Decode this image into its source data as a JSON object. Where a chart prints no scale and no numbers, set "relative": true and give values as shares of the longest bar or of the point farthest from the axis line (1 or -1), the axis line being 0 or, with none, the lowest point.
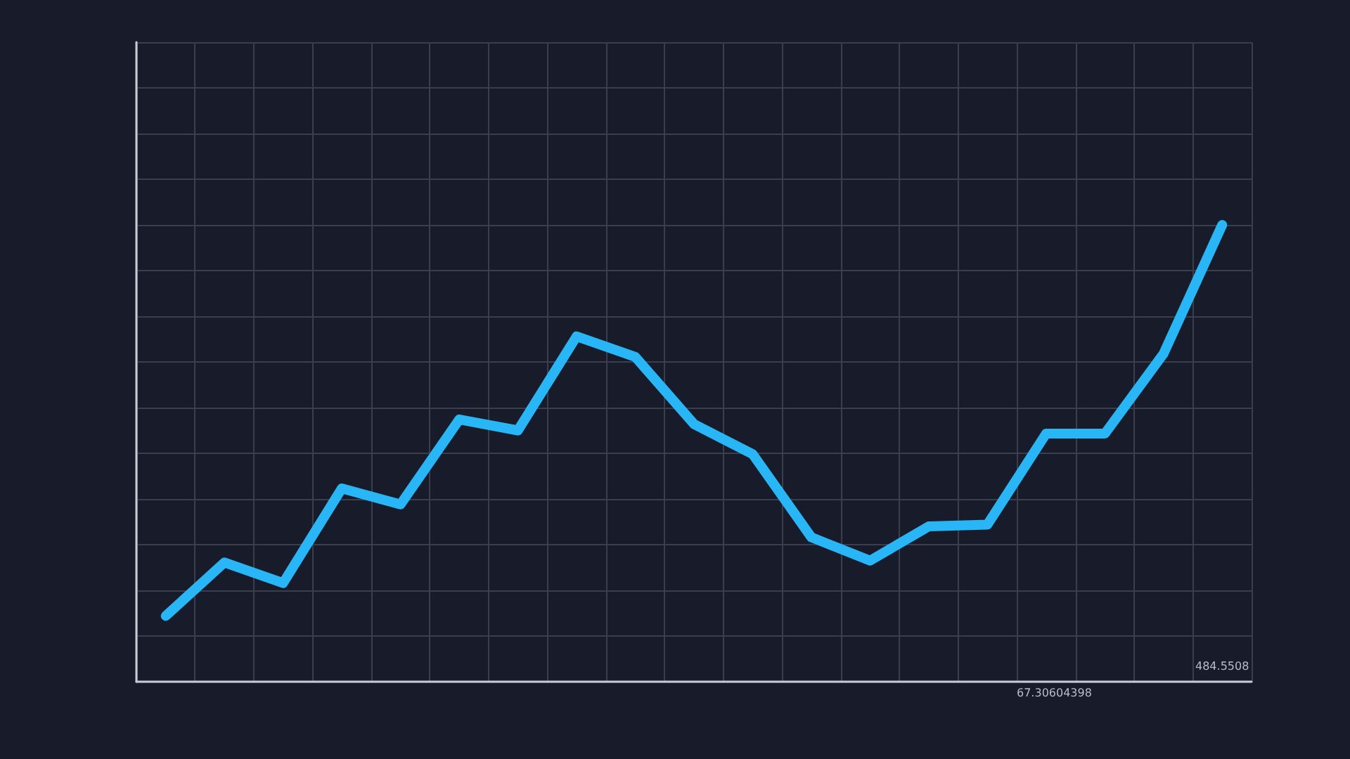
{
  "chart_data": {
    "type": "line",
    "relative": true,
    "categories": [
      null,
      null,
      null,
      null,
      null,
      null,
      null,
      null,
      null,
      null,
      null,
      null,
      null,
      null,
      null,
      null,
      null,
      null,
      null
    ],
    "series": [
      {
        "color": "#29b6f6",
        "values": [
          0.144,
          0.261,
          0.216,
          0.423,
          0.388,
          0.574,
          0.55,
          0.756,
          0.711,
          0.564,
          0.498,
          0.316,
          0.265,
          0.34,
          0.344,
          0.543,
          0.543,
          0.718,
          1
        ]
      }
    ],
    "annotations": [
      "67.30604398",
      "484.5508"
    ],
    "grid": true,
    "line_style": "solid"
  }
}
